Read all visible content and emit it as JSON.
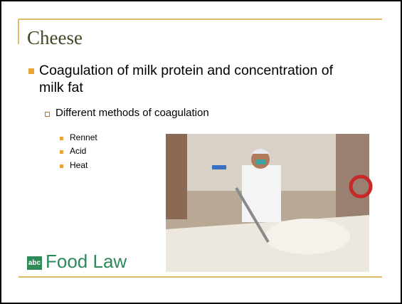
{
  "title": "Cheese",
  "bullets": [
    {
      "text": "Coagulation of milk protein and concentration of milk fat",
      "children": [
        {
          "text": "Different methods of coagulation",
          "children": [
            "Rennet",
            "Acid",
            "Heat"
          ]
        }
      ]
    }
  ],
  "logo": {
    "icon": "abc",
    "text": "Food Law"
  }
}
